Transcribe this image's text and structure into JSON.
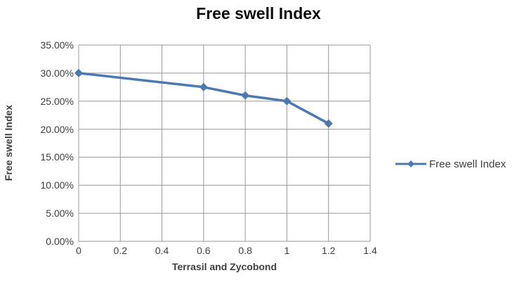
{
  "chart_data": {
    "type": "line",
    "title": "Free swell Index",
    "xlabel": "Terrasil and Zycobond",
    "ylabel": "Free swell Index",
    "grid": true,
    "marker": "diamond",
    "legend_position": "right",
    "xlim": [
      0,
      1.4
    ],
    "ylim": [
      0,
      35
    ],
    "xticks": [
      {
        "value": 0,
        "label": "0"
      },
      {
        "value": 0.2,
        "label": "0.2"
      },
      {
        "value": 0.4,
        "label": "0.4"
      },
      {
        "value": 0.6,
        "label": "0.6"
      },
      {
        "value": 0.8,
        "label": "0.8"
      },
      {
        "value": 1,
        "label": "1"
      },
      {
        "value": 1.2,
        "label": "1.2"
      },
      {
        "value": 1.4,
        "label": "1.4"
      }
    ],
    "yticks": [
      {
        "value": 35,
        "label": "35.00%"
      },
      {
        "value": 30,
        "label": "30.00%"
      },
      {
        "value": 25,
        "label": "25.00%"
      },
      {
        "value": 20,
        "label": "20.00%"
      },
      {
        "value": 15,
        "label": "15.00%"
      },
      {
        "value": 10,
        "label": "10.00%"
      },
      {
        "value": 5,
        "label": "5.00%"
      },
      {
        "value": 0,
        "label": "0.00%"
      }
    ],
    "series": [
      {
        "name": "Free swell Index",
        "points": [
          {
            "x": 0,
            "y": 30
          },
          {
            "x": 0.6,
            "y": 27.5
          },
          {
            "x": 0.8,
            "y": 26
          },
          {
            "x": 1,
            "y": 25
          },
          {
            "x": 1.2,
            "y": 21
          }
        ]
      }
    ],
    "colors": {
      "series": "#4c79ae",
      "gridline": "#999999",
      "axis_text": "#3f3f3f",
      "title_text": "#0d0d0d",
      "background": "#ffffff"
    }
  }
}
